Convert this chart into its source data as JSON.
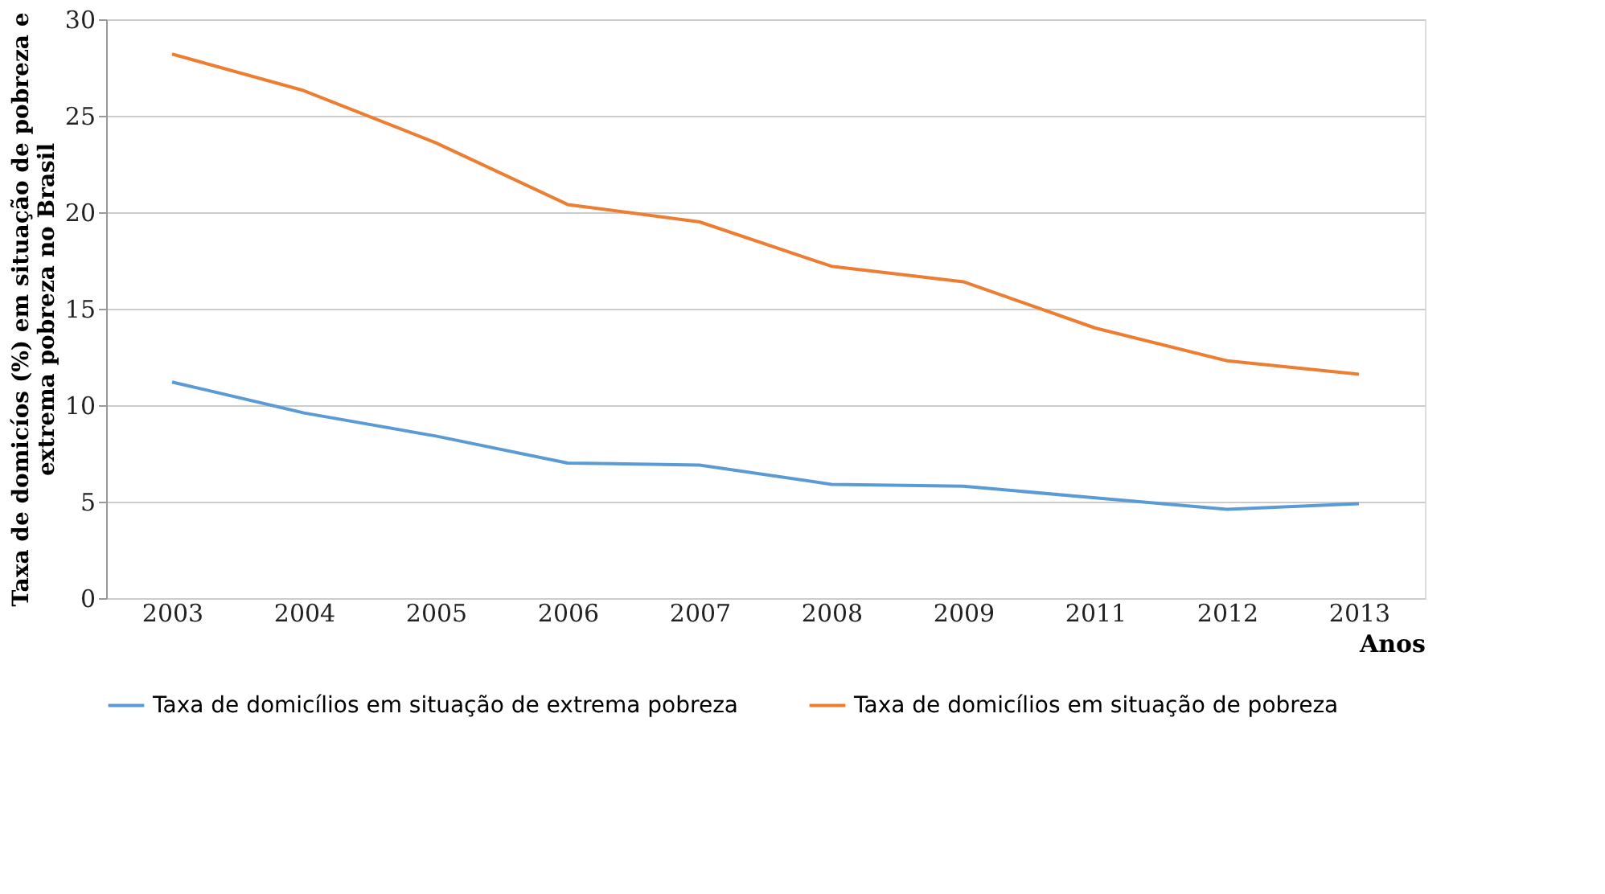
{
  "chart_data": {
    "type": "line",
    "xlabel": "Anos",
    "ylabel": "Taxa de domicíos (%) em situação de pobreza e extrema pobreza no Brasil",
    "categories": [
      "2003",
      "2004",
      "2005",
      "2006",
      "2007",
      "2008",
      "2009",
      "2011",
      "2012",
      "2013"
    ],
    "series": [
      {
        "name": "Taxa de domicílios em situação de extrema pobreza",
        "color": "#5b9bd5",
        "values": [
          11.2,
          9.6,
          8.4,
          7.0,
          6.9,
          5.9,
          5.8,
          5.2,
          4.6,
          4.9
        ]
      },
      {
        "name": "Taxa de domicílios em situação de pobreza",
        "color": "#ed7d31",
        "values": [
          28.2,
          26.3,
          23.6,
          20.4,
          19.5,
          17.2,
          16.4,
          14.0,
          12.3,
          11.6
        ]
      }
    ],
    "ylim": [
      0,
      30
    ],
    "yticks": [
      0,
      5,
      10,
      15,
      20,
      25,
      30
    ],
    "grid": "y",
    "legend": "bottom",
    "marker": "none",
    "line_style": "solid"
  }
}
